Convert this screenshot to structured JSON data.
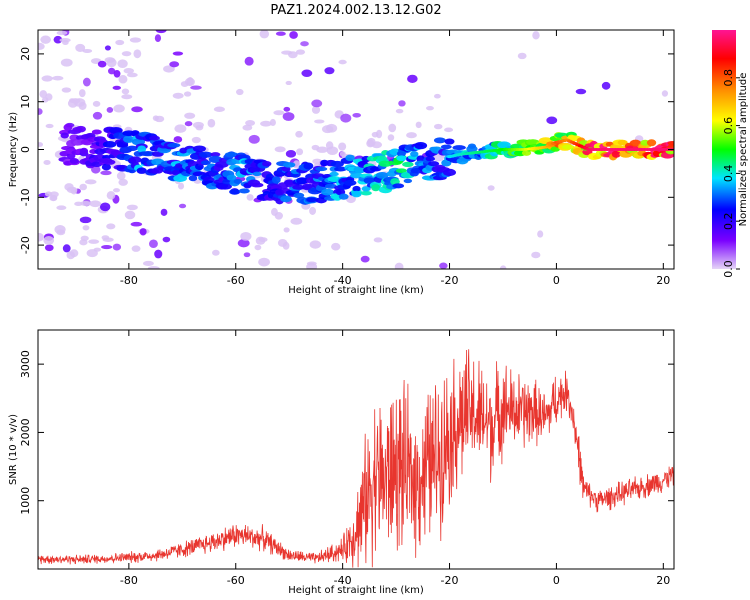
{
  "title": "PAZ1.2024.002.13.12.G02",
  "chart_data": [
    {
      "type": "heatmap",
      "xlabel": "Height of straight line (km)",
      "ylabel": "Frequency (Hz)",
      "xlim": [
        -97,
        22
      ],
      "ylim": [
        -25,
        25
      ],
      "xticks": [
        -80,
        -60,
        -40,
        -20,
        0,
        20
      ],
      "yticks": [
        -20,
        -10,
        0,
        10,
        20
      ],
      "colorbar": {
        "label": "Normalized spectral amplitude",
        "range": [
          0,
          1
        ],
        "ticks": [
          "0.0",
          "0.2",
          "0.4",
          "0.6",
          "0.8"
        ],
        "colormap": [
          "#e5d5f7",
          "#7a00ff",
          "#0000ff",
          "#00e5ff",
          "#00ff00",
          "#ffff00",
          "#ff8c00",
          "#ff0000",
          "#ff1493"
        ]
      },
      "ridge": {
        "height_km": [
          -90,
          -82,
          -78,
          -74,
          -70,
          -66,
          -62,
          -58,
          -54,
          -50,
          -46,
          -42,
          -38,
          -34,
          -30,
          -26,
          -22,
          -18,
          -14,
          -10,
          -6,
          -2,
          0,
          2,
          6,
          10,
          14,
          18,
          22
        ],
        "frequency_hz": [
          1,
          0,
          -0.5,
          -1.5,
          -2.5,
          -3.5,
          -4.5,
          -5.5,
          -6.5,
          -7,
          -7,
          -6.5,
          -5.5,
          -5,
          -4,
          -3,
          -2,
          -1,
          -0.5,
          0,
          0,
          0.5,
          1.5,
          2,
          0,
          0,
          0,
          0,
          0
        ],
        "amplitude": [
          0.15,
          0.25,
          0.35,
          0.3,
          0.35,
          0.3,
          0.3,
          0.35,
          0.25,
          0.3,
          0.3,
          0.35,
          0.35,
          0.4,
          0.45,
          0.35,
          0.3,
          0.35,
          0.4,
          0.45,
          0.55,
          0.65,
          0.75,
          0.7,
          0.9,
          0.95,
          0.95,
          0.95,
          0.9
        ]
      },
      "colors": {
        "noise": "#d9c2f5"
      }
    },
    {
      "type": "line",
      "xlabel": "Height of straight line (km)",
      "ylabel": "SNR (10 * v/v)",
      "xlim": [
        -97,
        22
      ],
      "ylim": [
        0,
        3500
      ],
      "xticks": [
        -80,
        -60,
        -40,
        -20,
        0,
        20
      ],
      "yticks": [
        1000,
        2000,
        3000
      ],
      "series": [
        {
          "color": "#e8352e",
          "x": [
            -97,
            -90,
            -85,
            -80,
            -75,
            -70,
            -65,
            -60,
            -55,
            -50,
            -45,
            -40,
            -38,
            -36,
            -34,
            -32,
            -30,
            -28,
            -26,
            -24,
            -22,
            -20,
            -18,
            -16,
            -14,
            -12,
            -10,
            -8,
            -6,
            -4,
            -2,
            0,
            2,
            3,
            4,
            5,
            6,
            8,
            10,
            12,
            14,
            16,
            18,
            20,
            22
          ],
          "y": [
            150,
            140,
            150,
            170,
            200,
            280,
            380,
            500,
            450,
            200,
            150,
            280,
            500,
            900,
            1400,
            1300,
            1500,
            1400,
            1300,
            1500,
            1700,
            2000,
            2200,
            2300,
            2200,
            2100,
            2400,
            2300,
            2300,
            2300,
            2200,
            2500,
            2600,
            2300,
            1800,
            1200,
            1100,
            1000,
            1050,
            1100,
            1150,
            1200,
            1250,
            1300,
            1400
          ],
          "spread": [
            60,
            60,
            60,
            70,
            80,
            100,
            130,
            160,
            150,
            80,
            70,
            150,
            400,
            800,
            1000,
            1000,
            1100,
            1000,
            900,
            1000,
            1000,
            900,
            900,
            800,
            700,
            700,
            600,
            500,
            500,
            400,
            350,
            350,
            250,
            250,
            300,
            200,
            150,
            150,
            150,
            150,
            150,
            150,
            150,
            150,
            150
          ]
        }
      ]
    }
  ]
}
